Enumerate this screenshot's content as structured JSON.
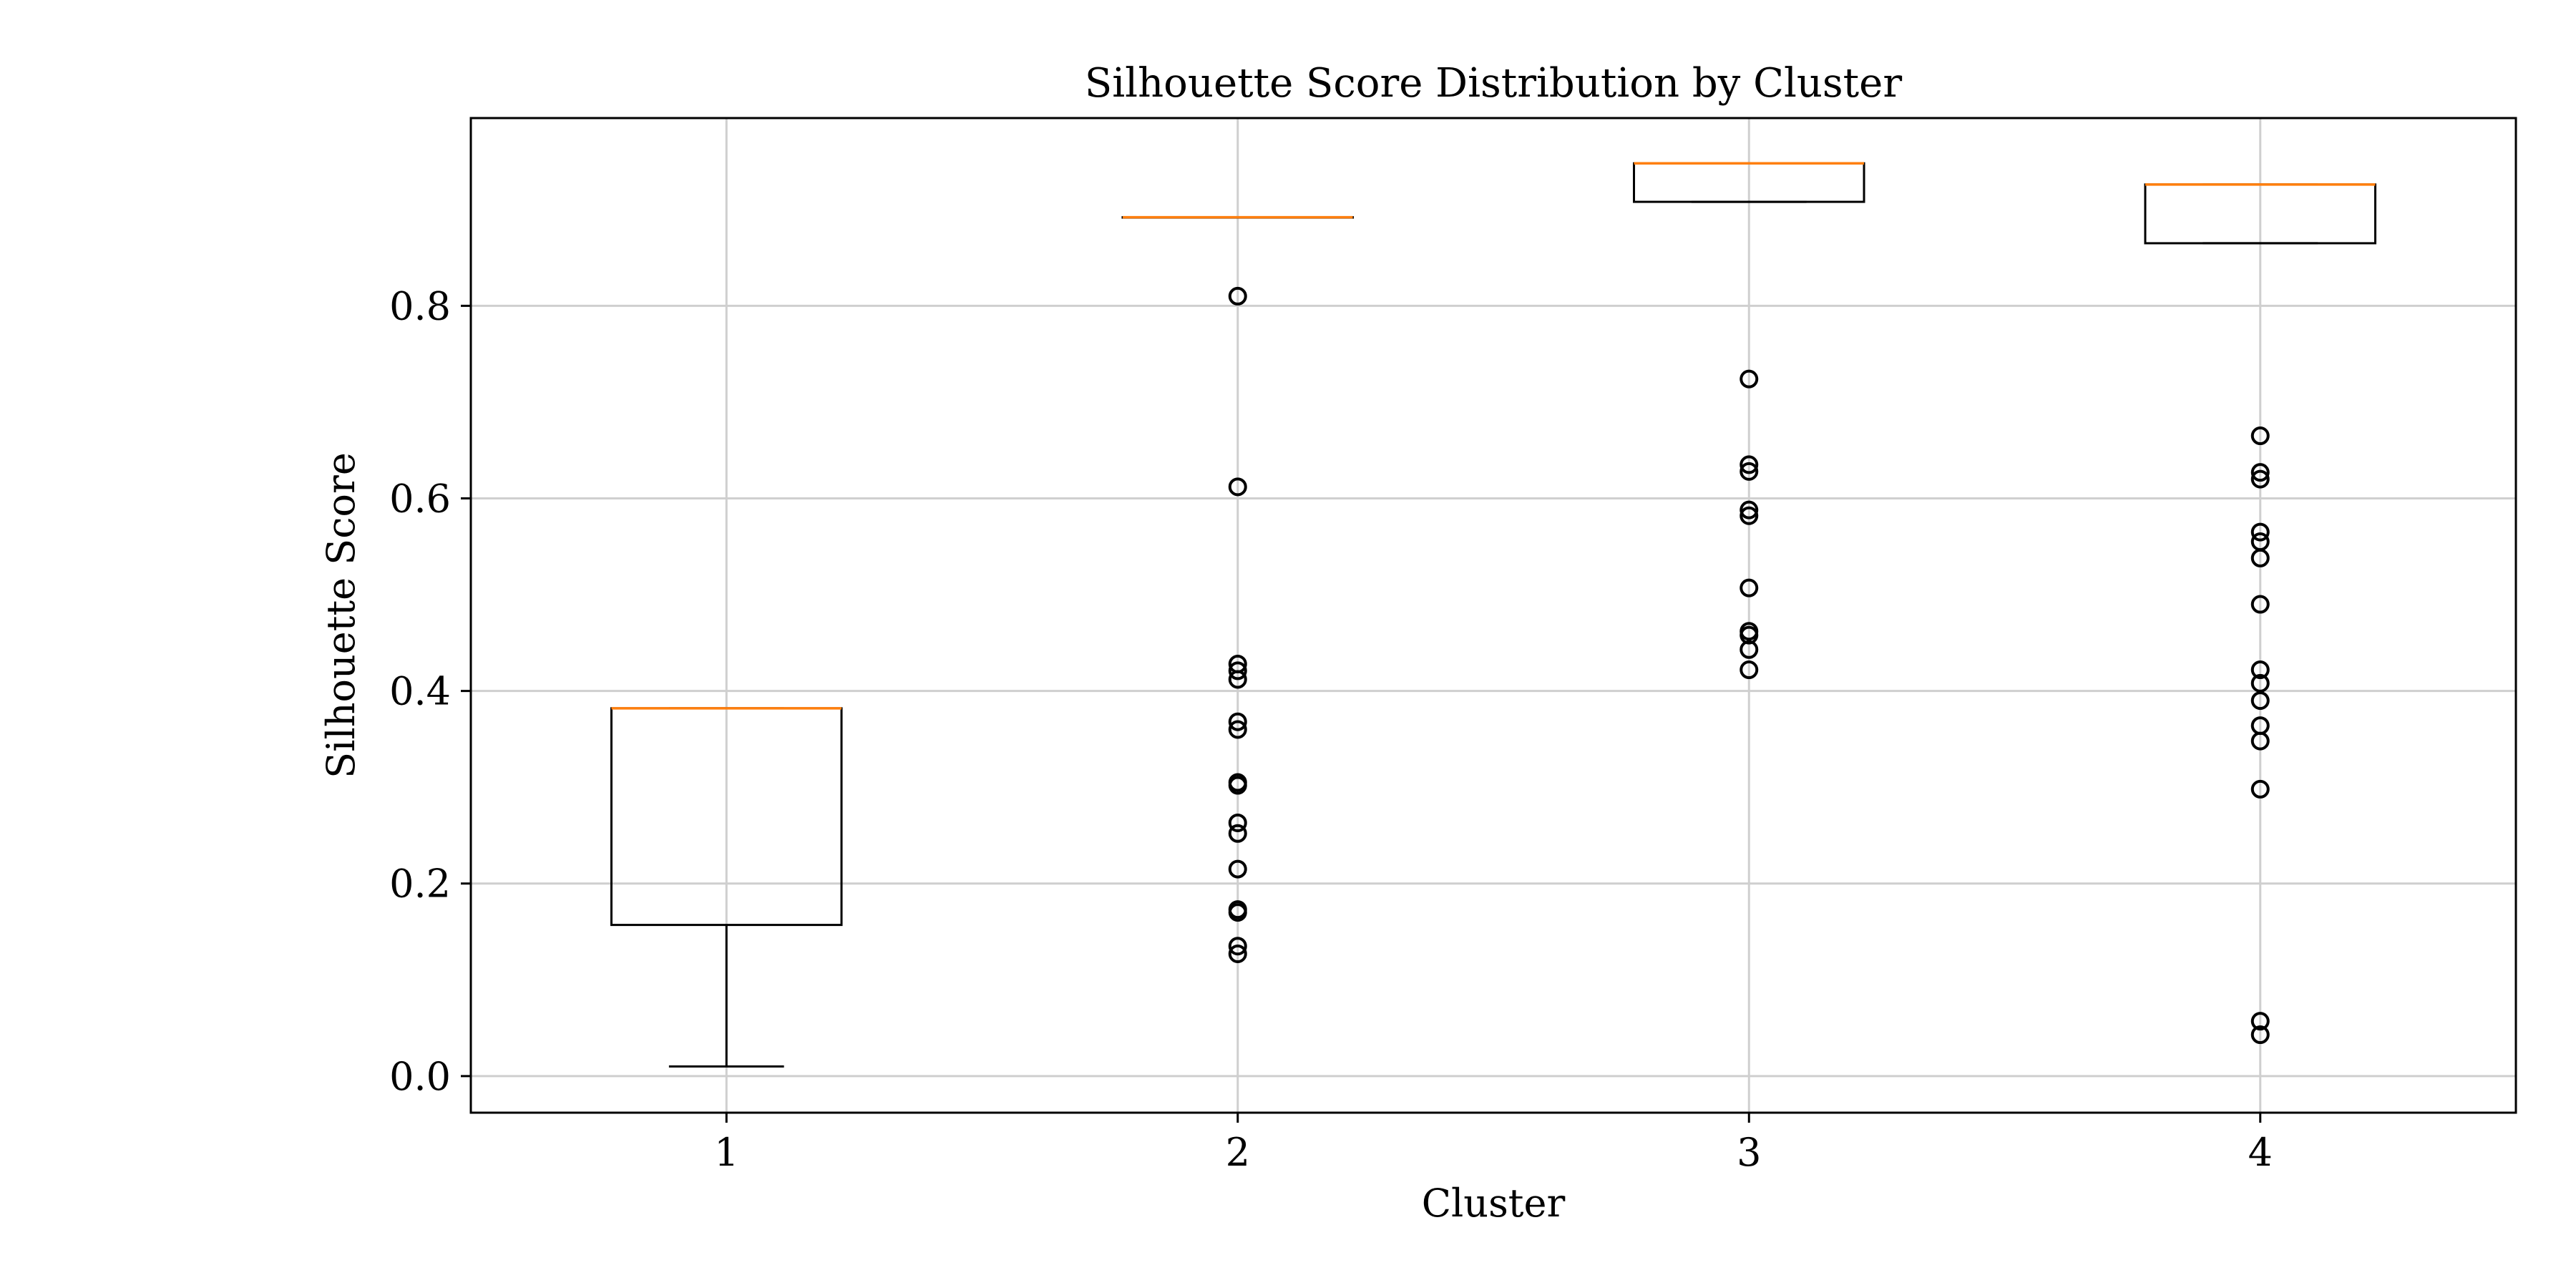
{
  "chart_data": {
    "type": "box",
    "title": "Silhouette Score Distribution by Cluster",
    "xlabel": "Cluster",
    "ylabel": "Silhouette Score",
    "ylim": [
      -0.038,
      0.995
    ],
    "yticks": [
      0.0,
      0.2,
      0.4,
      0.6,
      0.8
    ],
    "ytick_labels": [
      "0.0",
      "0.2",
      "0.4",
      "0.6",
      "0.8"
    ],
    "categories": [
      "1",
      "2",
      "3",
      "4"
    ],
    "grid": true,
    "boxes": [
      {
        "category": "1",
        "whisker_low": 0.01,
        "q1": 0.157,
        "median": 0.382,
        "q3": 0.382,
        "whisker_high": 0.382,
        "fliers": []
      },
      {
        "category": "2",
        "whisker_low": 0.892,
        "q1": 0.892,
        "median": 0.892,
        "q3": 0.892,
        "whisker_high": 0.892,
        "fliers": [
          0.81,
          0.612,
          0.428,
          0.421,
          0.412,
          0.368,
          0.36,
          0.305,
          0.302,
          0.263,
          0.252,
          0.215,
          0.173,
          0.17,
          0.135,
          0.127
        ]
      },
      {
        "category": "3",
        "whisker_low": 0.908,
        "q1": 0.908,
        "median": 0.948,
        "q3": 0.948,
        "whisker_high": 0.948,
        "fliers": [
          0.724,
          0.635,
          0.628,
          0.588,
          0.582,
          0.507,
          0.462,
          0.458,
          0.443,
          0.422
        ]
      },
      {
        "category": "4",
        "whisker_low": 0.865,
        "q1": 0.865,
        "median": 0.926,
        "q3": 0.926,
        "whisker_high": 0.926,
        "fliers": [
          0.665,
          0.627,
          0.62,
          0.565,
          0.555,
          0.538,
          0.49,
          0.422,
          0.408,
          0.39,
          0.364,
          0.348,
          0.298,
          0.057,
          0.043
        ]
      }
    ],
    "colors": {
      "median": "#ff7f0e",
      "box": "#000000",
      "grid": "#cfcfcf"
    }
  }
}
